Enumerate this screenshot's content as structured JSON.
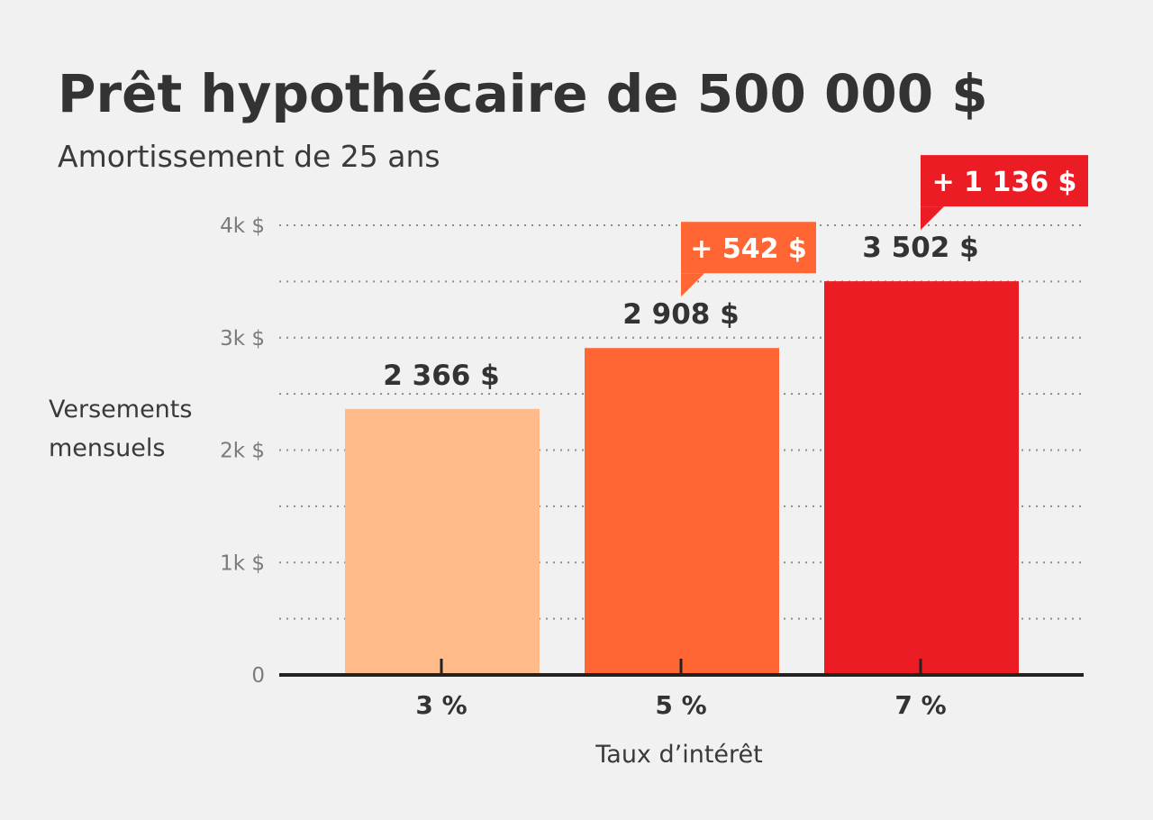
{
  "chart_data": {
    "type": "bar",
    "title": "Prêt hypothécaire de 500 000 $",
    "subtitle": "Amortissement de 25 ans",
    "ylabel_lines": [
      "Versements",
      "mensuels"
    ],
    "xlabel": "Taux d’intérêt",
    "categories": [
      "3 %",
      "5 %",
      "7 %"
    ],
    "values": [
      2366,
      2908,
      3502
    ],
    "value_labels": [
      "2 366 $",
      "2 908 $",
      "3 502 $"
    ],
    "bar_colors": [
      "#ffbb8a",
      "#ff6633",
      "#ec1c24"
    ],
    "differences": [
      {
        "category": "5 %",
        "label": "+ 542 $",
        "color": "#ff6633"
      },
      {
        "category": "7 %",
        "label": "+ 1 136 $",
        "color": "#ec1c24"
      }
    ],
    "ylim": [
      0,
      4000
    ],
    "yticks": [
      {
        "value": 0,
        "label": "0"
      },
      {
        "value": 1000,
        "label": "1k $"
      },
      {
        "value": 2000,
        "label": "2k $"
      },
      {
        "value": 3000,
        "label": "3k $"
      },
      {
        "value": 4000,
        "label": "4k $"
      }
    ],
    "grid": true,
    "grid_step": 500
  }
}
